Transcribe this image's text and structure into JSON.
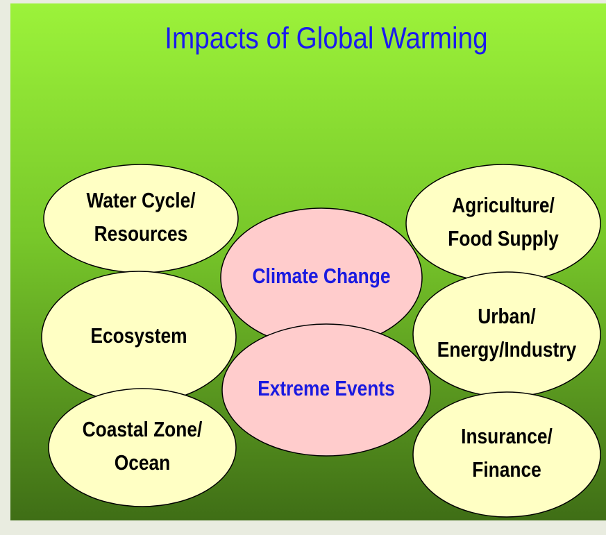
{
  "title": "Impacts of Global Warming",
  "impacts": [
    {
      "lines": [
        "Water Cycle/",
        "Resources"
      ]
    },
    {
      "lines": [
        "Ecosystem"
      ]
    },
    {
      "lines": [
        "Coastal Zone/",
        "Ocean"
      ]
    },
    {
      "lines": [
        "Agriculture/",
        "Food Supply"
      ]
    },
    {
      "lines": [
        "Urban/",
        "Energy/Industry"
      ]
    },
    {
      "lines": [
        "Insurance/",
        "Finance"
      ]
    }
  ],
  "drivers": [
    {
      "lines": [
        "Climate Change"
      ]
    },
    {
      "lines": [
        "Extreme Events"
      ]
    }
  ]
}
